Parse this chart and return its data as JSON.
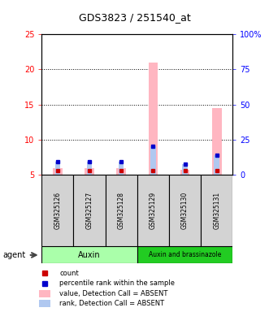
{
  "title": "GDS3823 / 251540_at",
  "samples": [
    "GSM325126",
    "GSM325127",
    "GSM325128",
    "GSM325129",
    "GSM325130",
    "GSM325131"
  ],
  "ylim_left": [
    5,
    25
  ],
  "ylim_right": [
    0,
    100
  ],
  "yticks_left": [
    5,
    10,
    15,
    20,
    25
  ],
  "yticks_right": [
    0,
    25,
    50,
    75,
    100
  ],
  "ytick_labels_left": [
    "5",
    "10",
    "15",
    "20",
    "25"
  ],
  "ytick_labels_right": [
    "0",
    "25",
    "50",
    "75",
    "100%"
  ],
  "grid_lines": [
    10,
    15,
    20
  ],
  "count_values": [
    5.6,
    5.6,
    5.6,
    5.6,
    5.55,
    5.6
  ],
  "rank_values": [
    6.8,
    6.8,
    6.8,
    9.0,
    6.5,
    7.8
  ],
  "value_bars": [
    5.9,
    5.9,
    5.9,
    21.0,
    5.7,
    14.5
  ],
  "rank_bars": [
    6.8,
    6.8,
    6.8,
    9.0,
    6.5,
    7.8
  ],
  "bar_bottom": 5.0,
  "value_bar_color": "#ffb6c1",
  "rank_bar_color": "#b0c8f0",
  "count_color": "#cc0000",
  "rank_color": "#0000cc",
  "auxin_color_light": "#aaffaa",
  "auxin_color_dark": "#22cc22",
  "sample_box_color": "#d3d3d3",
  "background_color": "#ffffff",
  "group1_label": "Auxin",
  "group2_label": "Auxin and brassinazole",
  "agent_label": "agent",
  "legend_items": [
    {
      "color": "#cc0000",
      "label": "count",
      "shape": "square"
    },
    {
      "color": "#0000cc",
      "label": "percentile rank within the sample",
      "shape": "square"
    },
    {
      "color": "#ffb6c1",
      "label": "value, Detection Call = ABSENT",
      "shape": "rect"
    },
    {
      "color": "#b0c8f0",
      "label": "rank, Detection Call = ABSENT",
      "shape": "rect"
    }
  ],
  "figsize": [
    3.31,
    3.84
  ],
  "dpi": 100
}
